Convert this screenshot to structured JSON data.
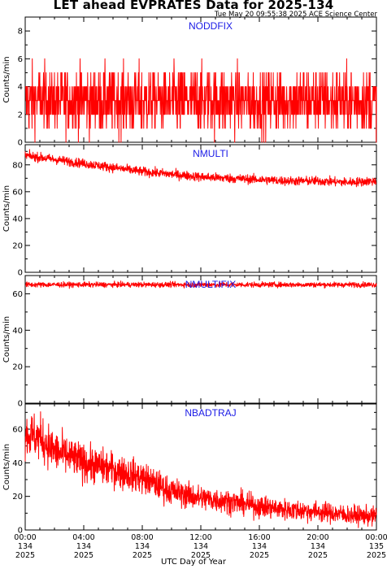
{
  "title": "LET ahead EVPRATES Data for 2025-134",
  "timestamp": "Tue May 20 09:55:38 2025 ACE Science Center",
  "xlabel": "UTC Day of Year",
  "series_color": "#ff0000",
  "title_color": "#1a1ae6",
  "chart_data": [
    {
      "type": "line",
      "title": "NODDFIX",
      "ylabel": "Counts/min",
      "ylim": [
        0,
        9
      ],
      "yticks": [
        0,
        2,
        4,
        6,
        8
      ],
      "xlim": [
        0,
        24
      ],
      "x": [
        0,
        2,
        4,
        6,
        8,
        10,
        12,
        14,
        16,
        18,
        20,
        22,
        24
      ],
      "y": [
        3,
        3,
        3,
        3,
        3,
        3,
        3,
        3,
        3,
        3,
        3,
        3,
        3
      ],
      "range": [
        0,
        9
      ],
      "noise": 1.0
    },
    {
      "type": "line",
      "title": "NMULTI",
      "ylabel": "Counts/min",
      "ylim": [
        0,
        95
      ],
      "yticks": [
        0,
        20,
        40,
        60,
        80
      ],
      "xlim": [
        0,
        24
      ],
      "x": [
        0,
        2,
        4,
        6,
        8,
        10,
        12,
        14,
        16,
        18,
        20,
        22,
        24
      ],
      "y": [
        87,
        84,
        81,
        78,
        75,
        73,
        71,
        70,
        69,
        68,
        68,
        67,
        68
      ],
      "range": [
        60,
        94
      ],
      "noise": 0.5
    },
    {
      "type": "line",
      "title": "NMULTIFIX",
      "ylabel": "Counts/min",
      "ylim": [
        0,
        70
      ],
      "yticks": [
        0,
        20,
        40,
        60
      ],
      "xlim": [
        0,
        24
      ],
      "x": [
        0,
        2,
        4,
        6,
        8,
        10,
        12,
        14,
        16,
        18,
        20,
        22,
        24
      ],
      "y": [
        65,
        65,
        65,
        65,
        65,
        65,
        65,
        65,
        65,
        65,
        65,
        65,
        65
      ],
      "range": [
        61,
        69
      ],
      "noise": 0.4
    },
    {
      "type": "line",
      "title": "NBADTRAJ",
      "ylabel": "Counts/min",
      "ylim": [
        0,
        75
      ],
      "yticks": [
        0,
        20,
        40,
        60
      ],
      "xlim": [
        0,
        24
      ],
      "x": [
        0,
        1,
        2,
        4,
        6,
        8,
        10,
        12,
        14,
        16,
        18,
        20,
        22,
        24
      ],
      "y": [
        57,
        55,
        47,
        40,
        36,
        31,
        23,
        19,
        17,
        14,
        12,
        11,
        9,
        8
      ],
      "range": [
        0,
        72
      ],
      "noise": 0.55
    }
  ],
  "xticks": [
    {
      "x": 0,
      "time": "00:00",
      "day": "134",
      "year": "2025"
    },
    {
      "x": 4,
      "time": "04:00",
      "day": "134",
      "year": "2025"
    },
    {
      "x": 8,
      "time": "08:00",
      "day": "134",
      "year": "2025"
    },
    {
      "x": 12,
      "time": "12:00",
      "day": "134",
      "year": "2025"
    },
    {
      "x": 16,
      "time": "16:00",
      "day": "134",
      "year": "2025"
    },
    {
      "x": 20,
      "time": "20:00",
      "day": "134",
      "year": "2025"
    },
    {
      "x": 24,
      "time": "00:00",
      "day": "135",
      "year": "2025"
    }
  ]
}
